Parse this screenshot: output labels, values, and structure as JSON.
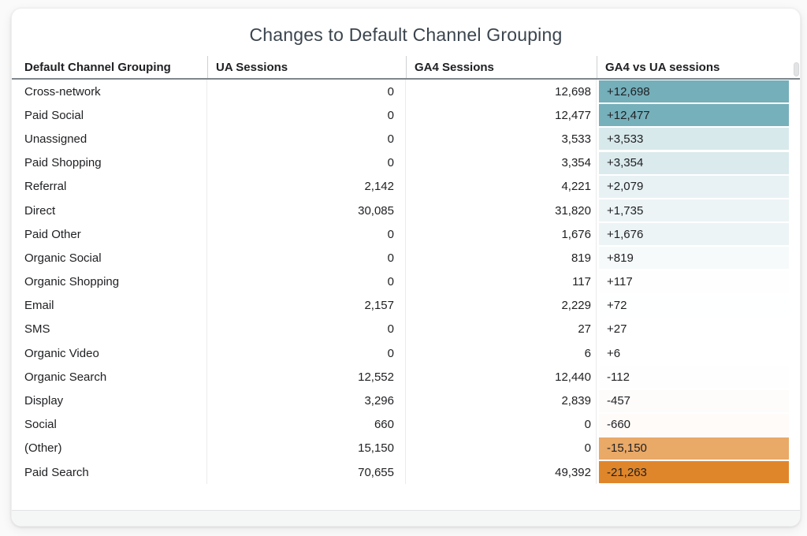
{
  "chart_data": {
    "type": "table",
    "title": "Changes to Default Channel Grouping",
    "columns": [
      "Default Channel Grouping",
      "UA Sessions",
      "GA4 Sessions",
      "GA4 vs UA sessions"
    ],
    "rows": [
      {
        "channel": "Cross-network",
        "ua_sessions": "0",
        "ga4_sessions": "12,698",
        "diff_label": "+12,698",
        "diff": 12698
      },
      {
        "channel": "Paid Social",
        "ua_sessions": "0",
        "ga4_sessions": "12,477",
        "diff_label": "+12,477",
        "diff": 12477
      },
      {
        "channel": "Unassigned",
        "ua_sessions": "0",
        "ga4_sessions": "3,533",
        "diff_label": "+3,533",
        "diff": 3533
      },
      {
        "channel": "Paid Shopping",
        "ua_sessions": "0",
        "ga4_sessions": "3,354",
        "diff_label": "+3,354",
        "diff": 3354
      },
      {
        "channel": "Referral",
        "ua_sessions": "2,142",
        "ga4_sessions": "4,221",
        "diff_label": "+2,079",
        "diff": 2079
      },
      {
        "channel": "Direct",
        "ua_sessions": "30,085",
        "ga4_sessions": "31,820",
        "diff_label": "+1,735",
        "diff": 1735
      },
      {
        "channel": "Paid Other",
        "ua_sessions": "0",
        "ga4_sessions": "1,676",
        "diff_label": "+1,676",
        "diff": 1676
      },
      {
        "channel": "Organic Social",
        "ua_sessions": "0",
        "ga4_sessions": "819",
        "diff_label": "+819",
        "diff": 819
      },
      {
        "channel": "Organic Shopping",
        "ua_sessions": "0",
        "ga4_sessions": "117",
        "diff_label": "+117",
        "diff": 117
      },
      {
        "channel": "Email",
        "ua_sessions": "2,157",
        "ga4_sessions": "2,229",
        "diff_label": "+72",
        "diff": 72
      },
      {
        "channel": "SMS",
        "ua_sessions": "0",
        "ga4_sessions": "27",
        "diff_label": "+27",
        "diff": 27
      },
      {
        "channel": "Organic Video",
        "ua_sessions": "0",
        "ga4_sessions": "6",
        "diff_label": "+6",
        "diff": 6
      },
      {
        "channel": "Organic Search",
        "ua_sessions": "12,552",
        "ga4_sessions": "12,440",
        "diff_label": "-112",
        "diff": -112
      },
      {
        "channel": "Display",
        "ua_sessions": "3,296",
        "ga4_sessions": "2,839",
        "diff_label": "-457",
        "diff": -457
      },
      {
        "channel": "Social",
        "ua_sessions": "660",
        "ga4_sessions": "0",
        "diff_label": "-660",
        "diff": -660
      },
      {
        "channel": "(Other)",
        "ua_sessions": "15,150",
        "ga4_sessions": "0",
        "diff_label": "-15,150",
        "diff": -15150
      },
      {
        "channel": "Paid Search",
        "ua_sessions": "70,655",
        "ga4_sessions": "49,392",
        "diff_label": "-21,263",
        "diff": -21263
      }
    ],
    "heatmap": {
      "applies_to_column": "GA4 vs UA sessions",
      "positive_color": "#74afba",
      "negative_color": "#e0862a",
      "neutral_color": "#ffffff",
      "scale_positive_max": 12698,
      "scale_negative_min": -21263
    },
    "layout": {
      "numeric_alignment": "right",
      "diff_column_alignment": "left",
      "grid": false,
      "legend_position": "none"
    }
  }
}
